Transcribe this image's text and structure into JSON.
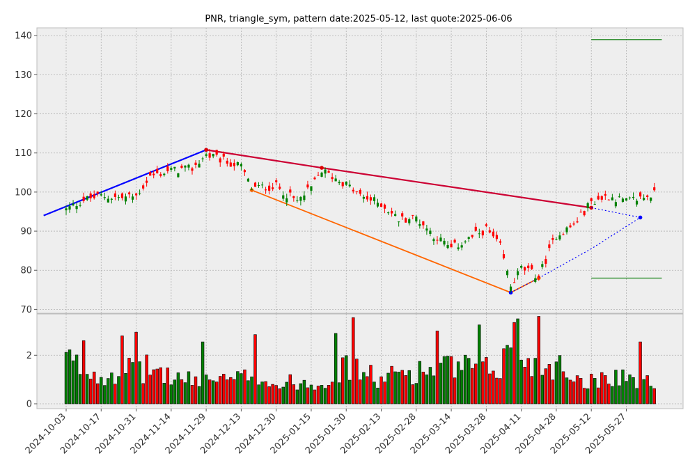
{
  "title": "PNR, triangle_sym, pattern date:2025-05-12, last quote:2025-06-06",
  "colors": {
    "panel_bg": "#eeeeee",
    "grid": "#b0b0b0",
    "up": "#008000",
    "down": "#ff0000",
    "volume_edge": "#000000",
    "upper_trendline": "#cc0033",
    "lower_trendline": "#ff6600",
    "prior_trend": "#0000ff",
    "projection": "#0000ff",
    "targets": "#007700"
  },
  "chart_data": {
    "type": "candlestick",
    "title": "PNR, triangle_sym, pattern date:2025-05-12, last quote:2025-06-06",
    "x_tick_labels": [
      "2024-10-03",
      "2024-10-17",
      "2024-10-31",
      "2024-11-14",
      "2024-11-29",
      "2024-12-13",
      "2024-12-30",
      "2025-01-15",
      "2025-01-30",
      "2025-02-13",
      "2025-02-28",
      "2025-03-14",
      "2025-03-28",
      "2025-04-11",
      "2025-04-28",
      "2025-05-12",
      "2025-05-27"
    ],
    "x_tick_index": [
      0,
      10,
      20,
      30,
      40,
      50,
      60,
      70,
      80,
      90,
      100,
      110,
      120,
      130,
      140,
      150,
      160
    ],
    "price_axis": {
      "ylim": [
        69,
        142
      ],
      "ticks": [
        70,
        80,
        90,
        100,
        110,
        120,
        130,
        140
      ]
    },
    "volume_axis": {
      "ylim": [
        -0.2,
        3.7
      ],
      "ticks": [
        0,
        2
      ]
    },
    "grid": true,
    "anchors": [
      {
        "date": "2024-10-03",
        "close": 95.5,
        "volume": 2.0
      },
      {
        "date": "2024-10-10",
        "close": 98.0,
        "volume": 1.5
      },
      {
        "date": "2024-10-17",
        "close": 99.0,
        "volume": 1.3
      },
      {
        "date": "2024-10-25",
        "close": 98.5,
        "volume": 1.5
      },
      {
        "date": "2024-10-31",
        "close": 99.0,
        "volume": 1.4
      },
      {
        "date": "2024-11-06",
        "close": 104.0,
        "volume": 1.6
      },
      {
        "date": "2024-11-14",
        "close": 105.5,
        "volume": 1.2
      },
      {
        "date": "2024-11-22",
        "close": 106.0,
        "volume": 1.0
      },
      {
        "date": "2024-11-29",
        "close": 109.5,
        "volume": 1.2
      },
      {
        "date": "2024-12-06",
        "close": 108.0,
        "volume": 1.0
      },
      {
        "date": "2024-12-13",
        "close": 106.5,
        "volume": 1.1
      },
      {
        "date": "2024-12-18",
        "close": 101.0,
        "volume": 1.4
      },
      {
        "date": "2024-12-30",
        "close": 101.5,
        "volume": 0.8
      },
      {
        "date": "2025-01-08",
        "close": 97.5,
        "volume": 1.0
      },
      {
        "date": "2025-01-15",
        "close": 101.0,
        "volume": 0.9
      },
      {
        "date": "2025-01-21",
        "close": 105.5,
        "volume": 1.0
      },
      {
        "date": "2025-01-30",
        "close": 102.0,
        "volume": 1.6
      },
      {
        "date": "2025-02-05",
        "close": 99.0,
        "volume": 1.5
      },
      {
        "date": "2025-02-13",
        "close": 97.0,
        "volume": 1.0
      },
      {
        "date": "2025-02-21",
        "close": 93.0,
        "volume": 1.4
      },
      {
        "date": "2025-02-28",
        "close": 93.5,
        "volume": 1.4
      },
      {
        "date": "2025-03-07",
        "close": 89.0,
        "volume": 1.6
      },
      {
        "date": "2025-03-14",
        "close": 85.5,
        "volume": 1.6
      },
      {
        "date": "2025-03-21",
        "close": 88.0,
        "volume": 1.6
      },
      {
        "date": "2025-03-28",
        "close": 90.5,
        "volume": 1.5
      },
      {
        "date": "2025-04-03",
        "close": 86.0,
        "volume": 1.6
      },
      {
        "date": "2025-04-08",
        "close": 76.0,
        "volume": 2.8
      },
      {
        "date": "2025-04-11",
        "close": 80.5,
        "volume": 2.2
      },
      {
        "date": "2025-04-21",
        "close": 78.5,
        "volume": 1.6
      },
      {
        "date": "2025-04-28",
        "close": 89.0,
        "volume": 1.8
      },
      {
        "date": "2025-05-05",
        "close": 91.5,
        "volume": 1.2
      },
      {
        "date": "2025-05-12",
        "close": 97.5,
        "volume": 1.0
      },
      {
        "date": "2025-05-19",
        "close": 99.0,
        "volume": 1.3
      },
      {
        "date": "2025-05-27",
        "close": 97.5,
        "volume": 1.2
      },
      {
        "date": "2025-06-06",
        "close": 99.5,
        "volume": 0.9
      }
    ],
    "spike_volumes": [
      {
        "date": "2024-10-10",
        "volume": 2.6
      },
      {
        "date": "2024-10-25",
        "volume": 2.8
      },
      {
        "date": "2024-10-31",
        "volume": 2.95
      },
      {
        "date": "2024-11-27",
        "volume": 2.55
      },
      {
        "date": "2024-12-19",
        "volume": 2.85
      },
      {
        "date": "2025-01-27",
        "volume": 2.9
      },
      {
        "date": "2025-02-03",
        "volume": 3.55
      },
      {
        "date": "2025-03-10",
        "volume": 3.0
      },
      {
        "date": "2025-03-26",
        "volume": 3.25
      },
      {
        "date": "2025-04-09",
        "volume": 3.35
      },
      {
        "date": "2025-04-10",
        "volume": 3.5
      },
      {
        "date": "2025-04-21",
        "volume": 3.6
      },
      {
        "date": "2025-06-02",
        "volume": 2.55
      }
    ],
    "annotation_lines": [
      {
        "name": "prior-trend",
        "points": [
          {
            "date": "2024-09-24",
            "price": 94.0
          },
          {
            "date": "2024-11-29",
            "price": 110.8
          }
        ]
      },
      {
        "name": "upper-trendline",
        "points": [
          {
            "date": "2024-11-29",
            "price": 110.8
          },
          {
            "date": "2025-01-21",
            "price": 106.2
          },
          {
            "date": "2025-05-12",
            "price": 96.0
          }
        ]
      },
      {
        "name": "lower-trendline",
        "points": [
          {
            "date": "2024-12-18",
            "price": 100.5
          },
          {
            "date": "2025-04-08",
            "price": 74.3
          },
          {
            "date": "2025-04-21",
            "price": 78.0
          }
        ]
      },
      {
        "name": "projection-upper",
        "style": "dotted",
        "points": [
          {
            "date": "2025-05-12",
            "price": 96.0
          },
          {
            "date": "2025-06-02",
            "price": 93.5
          }
        ]
      },
      {
        "name": "projection-lower",
        "style": "dotted",
        "points": [
          {
            "date": "2025-04-08",
            "price": 74.3
          },
          {
            "date": "2025-04-21",
            "price": 78.0
          },
          {
            "date": "2025-05-12",
            "price": 85.5
          },
          {
            "date": "2025-06-02",
            "price": 93.5
          }
        ]
      },
      {
        "name": "target-upper",
        "points": [
          {
            "date": "2025-05-12",
            "price": 139.0
          },
          {
            "date": "2025-06-09",
            "price": 139.0
          }
        ]
      },
      {
        "name": "target-lower",
        "points": [
          {
            "date": "2025-05-12",
            "price": 78.0
          },
          {
            "date": "2025-06-09",
            "price": 78.0
          }
        ]
      }
    ]
  }
}
